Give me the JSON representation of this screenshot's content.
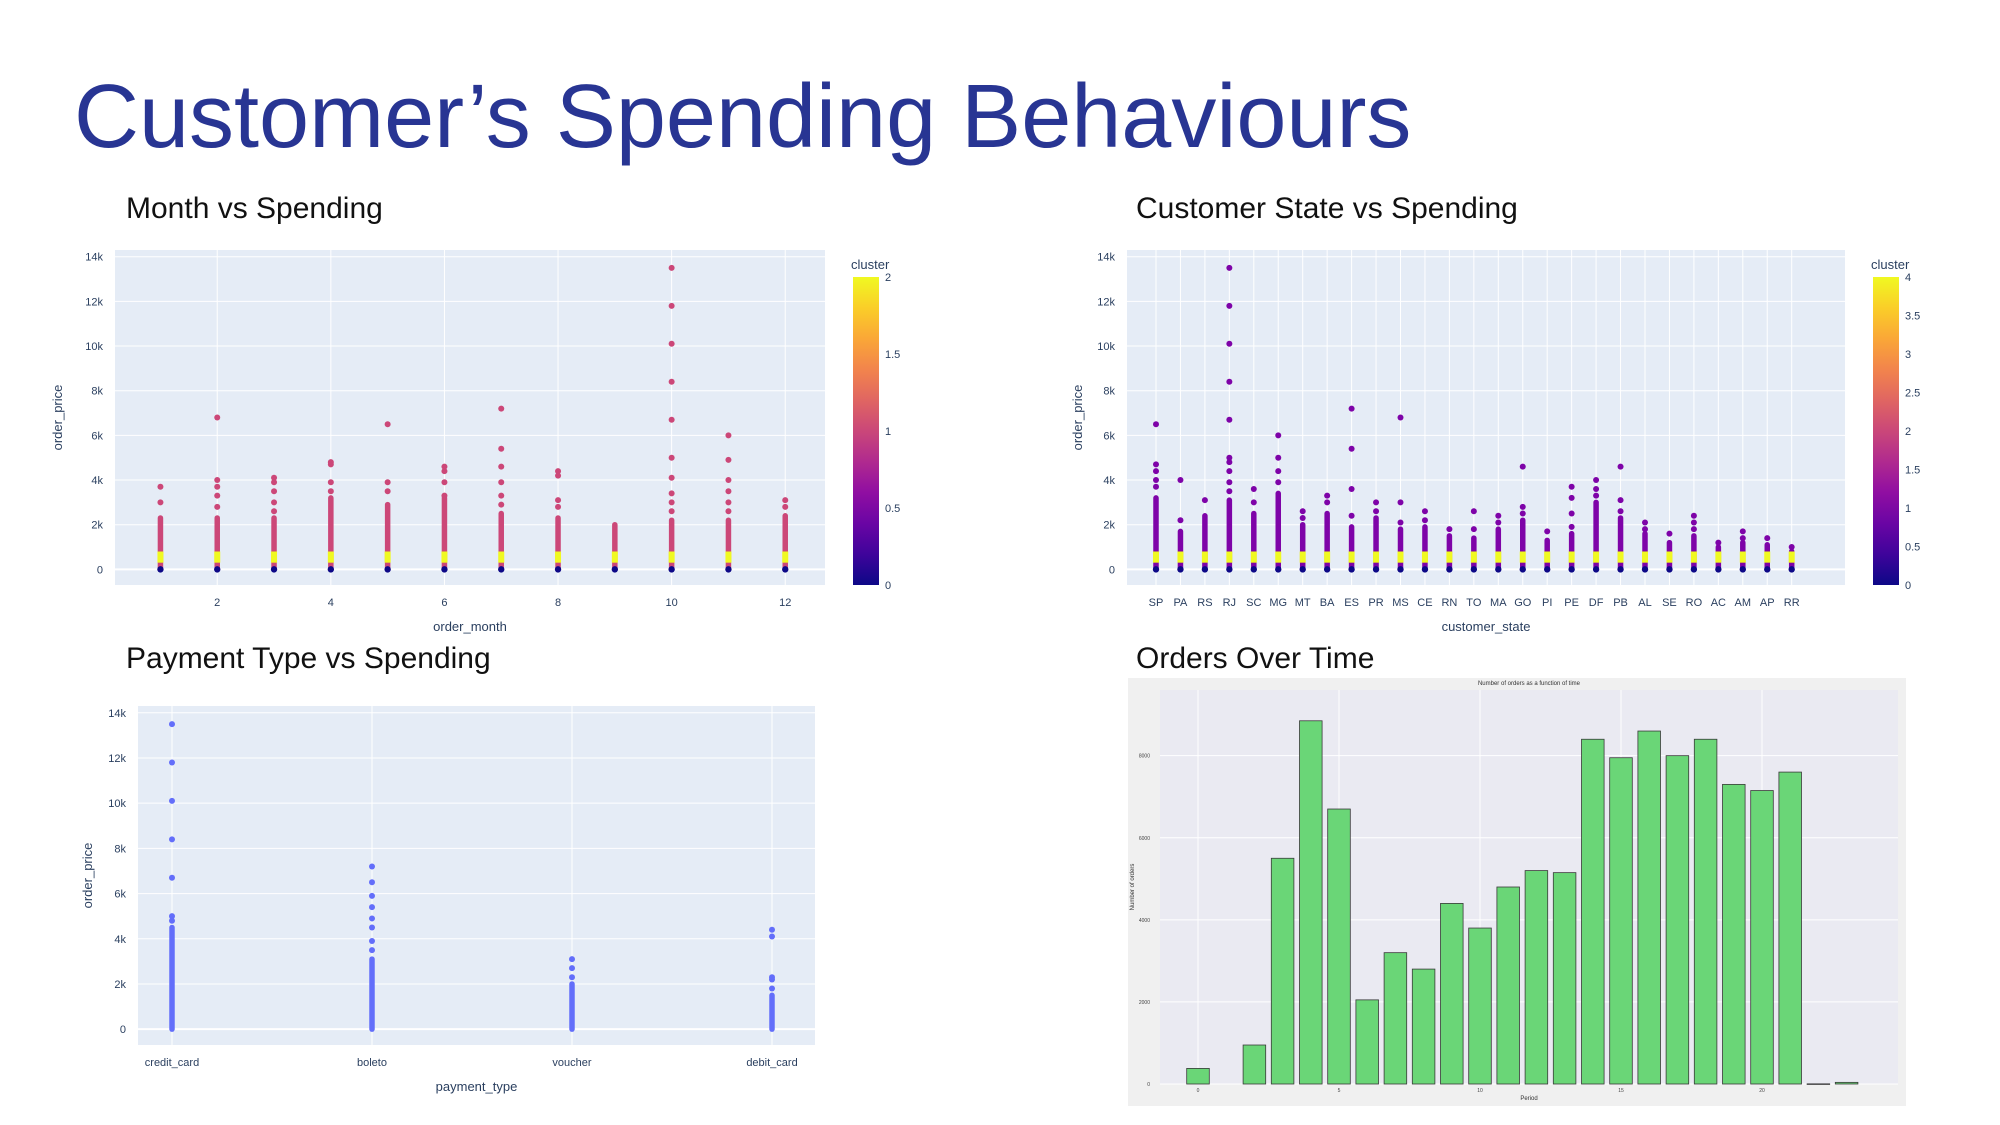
{
  "slide": {
    "title": "Customer’s Spending Behaviours",
    "sub1": "Month vs Spending",
    "sub2": "Customer State vs Spending",
    "sub3": "Payment Type vs Spending",
    "sub4": "Orders Over Time"
  },
  "colors": {
    "title": "#283593",
    "plot_bg": "#e5ecf6",
    "blue_points": "#636efa",
    "bar_fill": "#6ad677",
    "bar_bg": "#eaeaf2"
  },
  "chart_data": [
    {
      "type": "scatter",
      "xlabel": "order_month",
      "ylabel": "order_price",
      "x_ticks": [
        2,
        4,
        6,
        8,
        10,
        12
      ],
      "y_ticks": [
        "0",
        "2k",
        "4k",
        "6k",
        "8k",
        "10k",
        "12k",
        "14k"
      ],
      "xlim": [
        0.2,
        12.7
      ],
      "ylim": [
        -700,
        14300
      ],
      "colorbar": {
        "title": "cluster",
        "ticks": [
          "0",
          "0.5",
          "1",
          "1.5",
          "2"
        ],
        "range": [
          0,
          2
        ]
      },
      "columns": [
        {
          "x": 1,
          "max": 2300,
          "outliers": [
            3000,
            3700
          ]
        },
        {
          "x": 2,
          "max": 2300,
          "outliers": [
            2800,
            3300,
            3700,
            4000,
            6800
          ]
        },
        {
          "x": 3,
          "max": 2300,
          "outliers": [
            2600,
            3000,
            3500,
            3900,
            4100
          ]
        },
        {
          "x": 4,
          "max": 3200,
          "outliers": [
            3500,
            3900,
            4700,
            4800
          ]
        },
        {
          "x": 5,
          "max": 2900,
          "outliers": [
            3500,
            3900,
            6500
          ]
        },
        {
          "x": 6,
          "max": 3200,
          "outliers": [
            3300,
            3900,
            4400,
            4600
          ]
        },
        {
          "x": 7,
          "max": 2500,
          "outliers": [
            2900,
            3300,
            3900,
            4600,
            5400,
            7200
          ]
        },
        {
          "x": 8,
          "max": 2300,
          "outliers": [
            2800,
            3100,
            4200,
            4400
          ]
        },
        {
          "x": 9,
          "max": 2000,
          "outliers": []
        },
        {
          "x": 10,
          "max": 2200,
          "outliers": [
            2600,
            3000,
            3400,
            4100,
            5000,
            6700,
            8400,
            10100,
            11800,
            13500
          ]
        },
        {
          "x": 11,
          "max": 2200,
          "outliers": [
            2600,
            3000,
            3500,
            4000,
            4900,
            6000
          ]
        },
        {
          "x": 12,
          "max": 2400,
          "outliers": [
            2800,
            3100
          ]
        }
      ]
    },
    {
      "type": "scatter",
      "xlabel": "customer_state",
      "ylabel": "order_price",
      "categories": [
        "SP",
        "PA",
        "RS",
        "RJ",
        "SC",
        "MG",
        "MT",
        "BA",
        "ES",
        "PR",
        "MS",
        "CE",
        "RN",
        "TO",
        "MA",
        "GO",
        "PI",
        "PE",
        "DF",
        "PB",
        "AL",
        "SE",
        "RO",
        "AC",
        "AM",
        "AP",
        "RR"
      ],
      "y_ticks": [
        "0",
        "2k",
        "4k",
        "6k",
        "8k",
        "10k",
        "12k",
        "14k"
      ],
      "ylim": [
        -700,
        14300
      ],
      "colorbar": {
        "title": "cluster",
        "ticks": [
          "0",
          "0.5",
          "1",
          "1.5",
          "2",
          "2.5",
          "3",
          "3.5",
          "4"
        ],
        "range": [
          0,
          4
        ]
      },
      "columns": [
        {
          "max": 3200,
          "outliers": [
            3700,
            4000,
            4400,
            4700,
            6500
          ]
        },
        {
          "max": 1700,
          "outliers": [
            2200,
            4000
          ]
        },
        {
          "max": 2400,
          "outliers": [
            3100
          ]
        },
        {
          "max": 3100,
          "outliers": [
            3500,
            3900,
            4400,
            4800,
            5000,
            6700,
            8400,
            10100,
            11800,
            13500
          ]
        },
        {
          "max": 2500,
          "outliers": [
            3000,
            3600
          ]
        },
        {
          "max": 3400,
          "outliers": [
            3900,
            4400,
            5000,
            6000
          ]
        },
        {
          "max": 2000,
          "outliers": [
            2300,
            2600
          ]
        },
        {
          "max": 2500,
          "outliers": [
            3000,
            3300
          ]
        },
        {
          "max": 1900,
          "outliers": [
            2400,
            3600,
            5400,
            7200
          ]
        },
        {
          "max": 2300,
          "outliers": [
            2600,
            3000
          ]
        },
        {
          "max": 1800,
          "outliers": [
            2100,
            3000,
            6800
          ]
        },
        {
          "max": 1900,
          "outliers": [
            2200,
            2600
          ]
        },
        {
          "max": 1500,
          "outliers": [
            1800
          ]
        },
        {
          "max": 1400,
          "outliers": [
            1800,
            2600
          ]
        },
        {
          "max": 1800,
          "outliers": [
            2100,
            2400
          ]
        },
        {
          "max": 2200,
          "outliers": [
            2500,
            2800,
            4600
          ]
        },
        {
          "max": 1300,
          "outliers": [
            1700
          ]
        },
        {
          "max": 1600,
          "outliers": [
            1900,
            2500,
            3200,
            3700
          ]
        },
        {
          "max": 3000,
          "outliers": [
            3300,
            3600,
            4000
          ]
        },
        {
          "max": 2300,
          "outliers": [
            2600,
            3100,
            4600
          ]
        },
        {
          "max": 1600,
          "outliers": [
            1800,
            2100
          ]
        },
        {
          "max": 1200,
          "outliers": [
            1600
          ]
        },
        {
          "max": 1500,
          "outliers": [
            1800,
            2100,
            2400
          ]
        },
        {
          "max": 1000,
          "outliers": [
            1200
          ]
        },
        {
          "max": 1200,
          "outliers": [
            1400,
            1700
          ]
        },
        {
          "max": 1100,
          "outliers": [
            1400
          ]
        },
        {
          "max": 800,
          "outliers": [
            1000
          ]
        }
      ]
    },
    {
      "type": "scatter",
      "xlabel": "payment_type",
      "ylabel": "order_price",
      "categories": [
        "credit_card",
        "boleto",
        "voucher",
        "debit_card"
      ],
      "y_ticks": [
        "0",
        "2k",
        "4k",
        "6k",
        "8k",
        "10k",
        "12k",
        "14k"
      ],
      "ylim": [
        -700,
        14300
      ],
      "columns": [
        {
          "max": 4500,
          "outliers": [
            4800,
            5000,
            6700,
            8400,
            10100,
            11800,
            13500
          ]
        },
        {
          "max": 3100,
          "outliers": [
            3500,
            3900,
            4500,
            4900,
            5400,
            5900,
            6500,
            7200
          ]
        },
        {
          "max": 2000,
          "outliers": [
            2300,
            2700,
            3100
          ]
        },
        {
          "max": 1500,
          "outliers": [
            1800,
            2200,
            2300,
            4100,
            4400
          ]
        }
      ]
    },
    {
      "type": "bar",
      "title": "Number of orders as a function of time",
      "xlabel": "Period",
      "ylabel": "Number of orders",
      "x_ticks": [
        "0",
        "5",
        "10",
        "15",
        "20"
      ],
      "y_ticks": [
        "0",
        "2000",
        "4000",
        "6000",
        "8000"
      ],
      "ylim": [
        0,
        9600
      ],
      "x": [
        0,
        2,
        3,
        4,
        5,
        6,
        7,
        8,
        9,
        10,
        11,
        12,
        13,
        14,
        15,
        16,
        17,
        18,
        19,
        20,
        21,
        22,
        23
      ],
      "values": [
        380,
        950,
        5500,
        8850,
        6700,
        2050,
        3200,
        2800,
        4400,
        3800,
        4800,
        5200,
        5150,
        8400,
        7950,
        8600,
        8000,
        8400,
        7300,
        7150,
        7600,
        4,
        40
      ]
    }
  ]
}
